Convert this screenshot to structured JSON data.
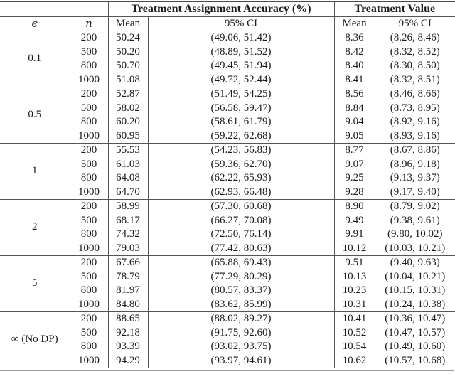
{
  "table": {
    "header": {
      "group_accuracy": "Treatment Assignment Accuracy (%)",
      "group_value": "Treatment Value",
      "col_epsilon": "ϵ",
      "col_n": "n",
      "col_mean_accuracy": "Mean",
      "col_ci_accuracy": "95% CI",
      "col_mean_value": "Mean",
      "col_ci_value": "95% CI"
    },
    "groups": [
      {
        "epsilon": "0.1",
        "rows": [
          {
            "n": "200",
            "acc_mean": "50.24",
            "acc_ci": "(49.06, 51.42)",
            "val_mean": "8.36",
            "val_ci": "(8.26, 8.46)"
          },
          {
            "n": "500",
            "acc_mean": "50.20",
            "acc_ci": "(48.89, 51.52)",
            "val_mean": "8.42",
            "val_ci": "(8.32, 8.52)"
          },
          {
            "n": "800",
            "acc_mean": "50.70",
            "acc_ci": "(49.45, 51.94)",
            "val_mean": "8.40",
            "val_ci": "(8.30, 8.50)"
          },
          {
            "n": "1000",
            "acc_mean": "51.08",
            "acc_ci": "(49.72, 52.44)",
            "val_mean": "8.41",
            "val_ci": "(8.32, 8.51)"
          }
        ]
      },
      {
        "epsilon": "0.5",
        "rows": [
          {
            "n": "200",
            "acc_mean": "52.87",
            "acc_ci": "(51.49, 54.25)",
            "val_mean": "8.56",
            "val_ci": "(8.46, 8.66)"
          },
          {
            "n": "500",
            "acc_mean": "58.02",
            "acc_ci": "(56.58, 59.47)",
            "val_mean": "8.84",
            "val_ci": "(8.73, 8.95)"
          },
          {
            "n": "800",
            "acc_mean": "60.20",
            "acc_ci": "(58.61, 61.79)",
            "val_mean": "9.04",
            "val_ci": "(8.92, 9.16)"
          },
          {
            "n": "1000",
            "acc_mean": "60.95",
            "acc_ci": "(59.22, 62.68)",
            "val_mean": "9.05",
            "val_ci": "(8.93, 9.16)"
          }
        ]
      },
      {
        "epsilon": "1",
        "rows": [
          {
            "n": "200",
            "acc_mean": "55.53",
            "acc_ci": "(54.23, 56.83)",
            "val_mean": "8.77",
            "val_ci": "(8.67, 8.86)"
          },
          {
            "n": "500",
            "acc_mean": "61.03",
            "acc_ci": "(59.36, 62.70)",
            "val_mean": "9.07",
            "val_ci": "(8.96, 9.18)"
          },
          {
            "n": "800",
            "acc_mean": "64.08",
            "acc_ci": "(62.22, 65.93)",
            "val_mean": "9.25",
            "val_ci": "(9.13, 9.37)"
          },
          {
            "n": "1000",
            "acc_mean": "64.70",
            "acc_ci": "(62.93, 66.48)",
            "val_mean": "9.28",
            "val_ci": "(9.17, 9.40)"
          }
        ]
      },
      {
        "epsilon": "2",
        "rows": [
          {
            "n": "200",
            "acc_mean": "58.99",
            "acc_ci": "(57.30, 60.68)",
            "val_mean": "8.90",
            "val_ci": "(8.79, 9.02)"
          },
          {
            "n": "500",
            "acc_mean": "68.17",
            "acc_ci": "(66.27, 70.08)",
            "val_mean": "9.49",
            "val_ci": "(9.38, 9.61)"
          },
          {
            "n": "800",
            "acc_mean": "74.32",
            "acc_ci": "(72.50, 76.14)",
            "val_mean": "9.91",
            "val_ci": "(9.80, 10.02)"
          },
          {
            "n": "1000",
            "acc_mean": "79.03",
            "acc_ci": "(77.42, 80.63)",
            "val_mean": "10.12",
            "val_ci": "(10.03, 10.21)"
          }
        ]
      },
      {
        "epsilon": "5",
        "rows": [
          {
            "n": "200",
            "acc_mean": "67.66",
            "acc_ci": "(65.88, 69.43)",
            "val_mean": "9.51",
            "val_ci": "(9.40, 9.63)"
          },
          {
            "n": "500",
            "acc_mean": "78.79",
            "acc_ci": "(77.29, 80.29)",
            "val_mean": "10.13",
            "val_ci": "(10.04, 10.21)"
          },
          {
            "n": "800",
            "acc_mean": "81.97",
            "acc_ci": "(80.57, 83.37)",
            "val_mean": "10.23",
            "val_ci": "(10.15, 10.31)"
          },
          {
            "n": "1000",
            "acc_mean": "84.80",
            "acc_ci": "(83.62, 85.99)",
            "val_mean": "10.31",
            "val_ci": "(10.24, 10.38)"
          }
        ]
      },
      {
        "epsilon": "∞ (No DP)",
        "rows": [
          {
            "n": "200",
            "acc_mean": "88.65",
            "acc_ci": "(88.02, 89.27)",
            "val_mean": "10.41",
            "val_ci": "(10.36, 10.47)"
          },
          {
            "n": "500",
            "acc_mean": "92.18",
            "acc_ci": "(91.75, 92.60)",
            "val_mean": "10.52",
            "val_ci": "(10.47, 10.57)"
          },
          {
            "n": "800",
            "acc_mean": "93.39",
            "acc_ci": "(93.02, 93.75)",
            "val_mean": "10.54",
            "val_ci": "(10.49, 10.60)"
          },
          {
            "n": "1000",
            "acc_mean": "94.29",
            "acc_ci": "(93.97, 94.61)",
            "val_mean": "10.62",
            "val_ci": "(10.57, 10.68)"
          }
        ]
      }
    ]
  },
  "colors": {
    "text": "#1b1b1b",
    "rule": "#555555",
    "rule_outer_bottom": "#9c9c9c",
    "background": "#ffffff"
  }
}
